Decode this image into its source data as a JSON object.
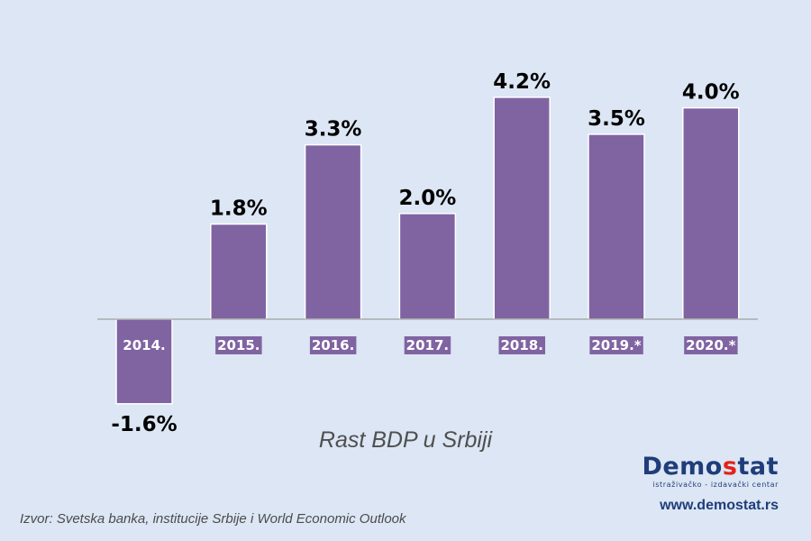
{
  "chart_data": {
    "type": "bar",
    "title": "Rast BDP u Srbiji",
    "categories": [
      "2014.",
      "2015.",
      "2016.",
      "2017.",
      "2018.",
      "2019.*",
      "2020.*"
    ],
    "values": [
      -1.6,
      1.8,
      3.3,
      2.0,
      4.2,
      3.5,
      4.0
    ],
    "value_labels": [
      "-1.6%",
      "1.8%",
      "3.3%",
      "2.0%",
      "4.2%",
      "3.5%",
      "4.0%"
    ],
    "xlabel": "",
    "ylabel": "",
    "ylim": [
      -1.6,
      4.2
    ],
    "grid": false,
    "legend": "none",
    "bar_color": "#8064a2",
    "axis_color": "#8e8e8e"
  },
  "source": "Izvor: Svetska banka, institucije Srbije i World Economic Outlook",
  "brand": {
    "name_part1": "Demo",
    "name_part2": "s",
    "name_part3": "tat",
    "tagline": "istraživačko - izdavački centar",
    "url": "www.demostat.rs",
    "color_primary": "#1f3d7a",
    "color_accent": "#e2231a"
  }
}
